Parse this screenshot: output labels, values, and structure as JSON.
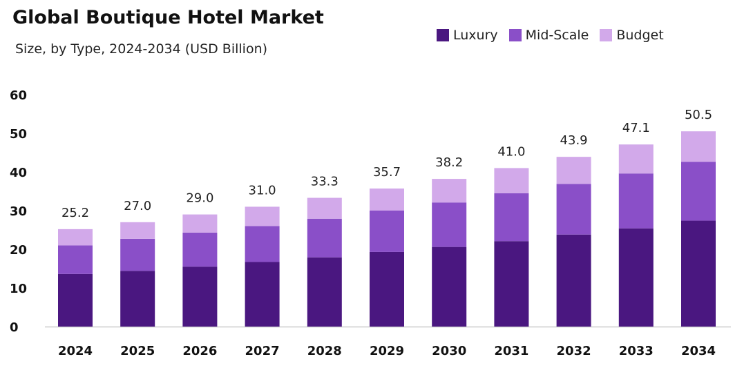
{
  "chart_data": {
    "type": "bar",
    "stacked": true,
    "title": "Global Boutique Hotel Market",
    "subtitle": "Size, by Type, 2024-2034 (USD Billion)",
    "categories": [
      "2024",
      "2025",
      "2026",
      "2027",
      "2028",
      "2029",
      "2030",
      "2031",
      "2032",
      "2033",
      "2034"
    ],
    "series": [
      {
        "name": "Luxury",
        "color": "#4a1780",
        "values": [
          13.6,
          14.4,
          15.5,
          16.7,
          17.9,
          19.3,
          20.6,
          22.1,
          23.8,
          25.4,
          27.4
        ]
      },
      {
        "name": "Mid-Scale",
        "color": "#8a4fc8",
        "values": [
          7.4,
          8.3,
          8.8,
          9.3,
          10.0,
          10.7,
          11.5,
          12.4,
          13.1,
          14.2,
          15.2
        ]
      },
      {
        "name": "Budget",
        "color": "#d2a9ea",
        "values": [
          4.2,
          4.3,
          4.7,
          5.0,
          5.4,
          5.7,
          6.1,
          6.5,
          7.0,
          7.5,
          7.9
        ]
      }
    ],
    "totals": [
      "25.2",
      "27.0",
      "29.0",
      "31.0",
      "33.3",
      "35.7",
      "38.2",
      "41.0",
      "43.9",
      "47.1",
      "50.5"
    ],
    "yticks": [
      "0",
      "10",
      "20",
      "30",
      "40",
      "50",
      "60"
    ],
    "ylim": [
      0,
      60
    ],
    "grid": false,
    "legend_position": "top-right"
  }
}
